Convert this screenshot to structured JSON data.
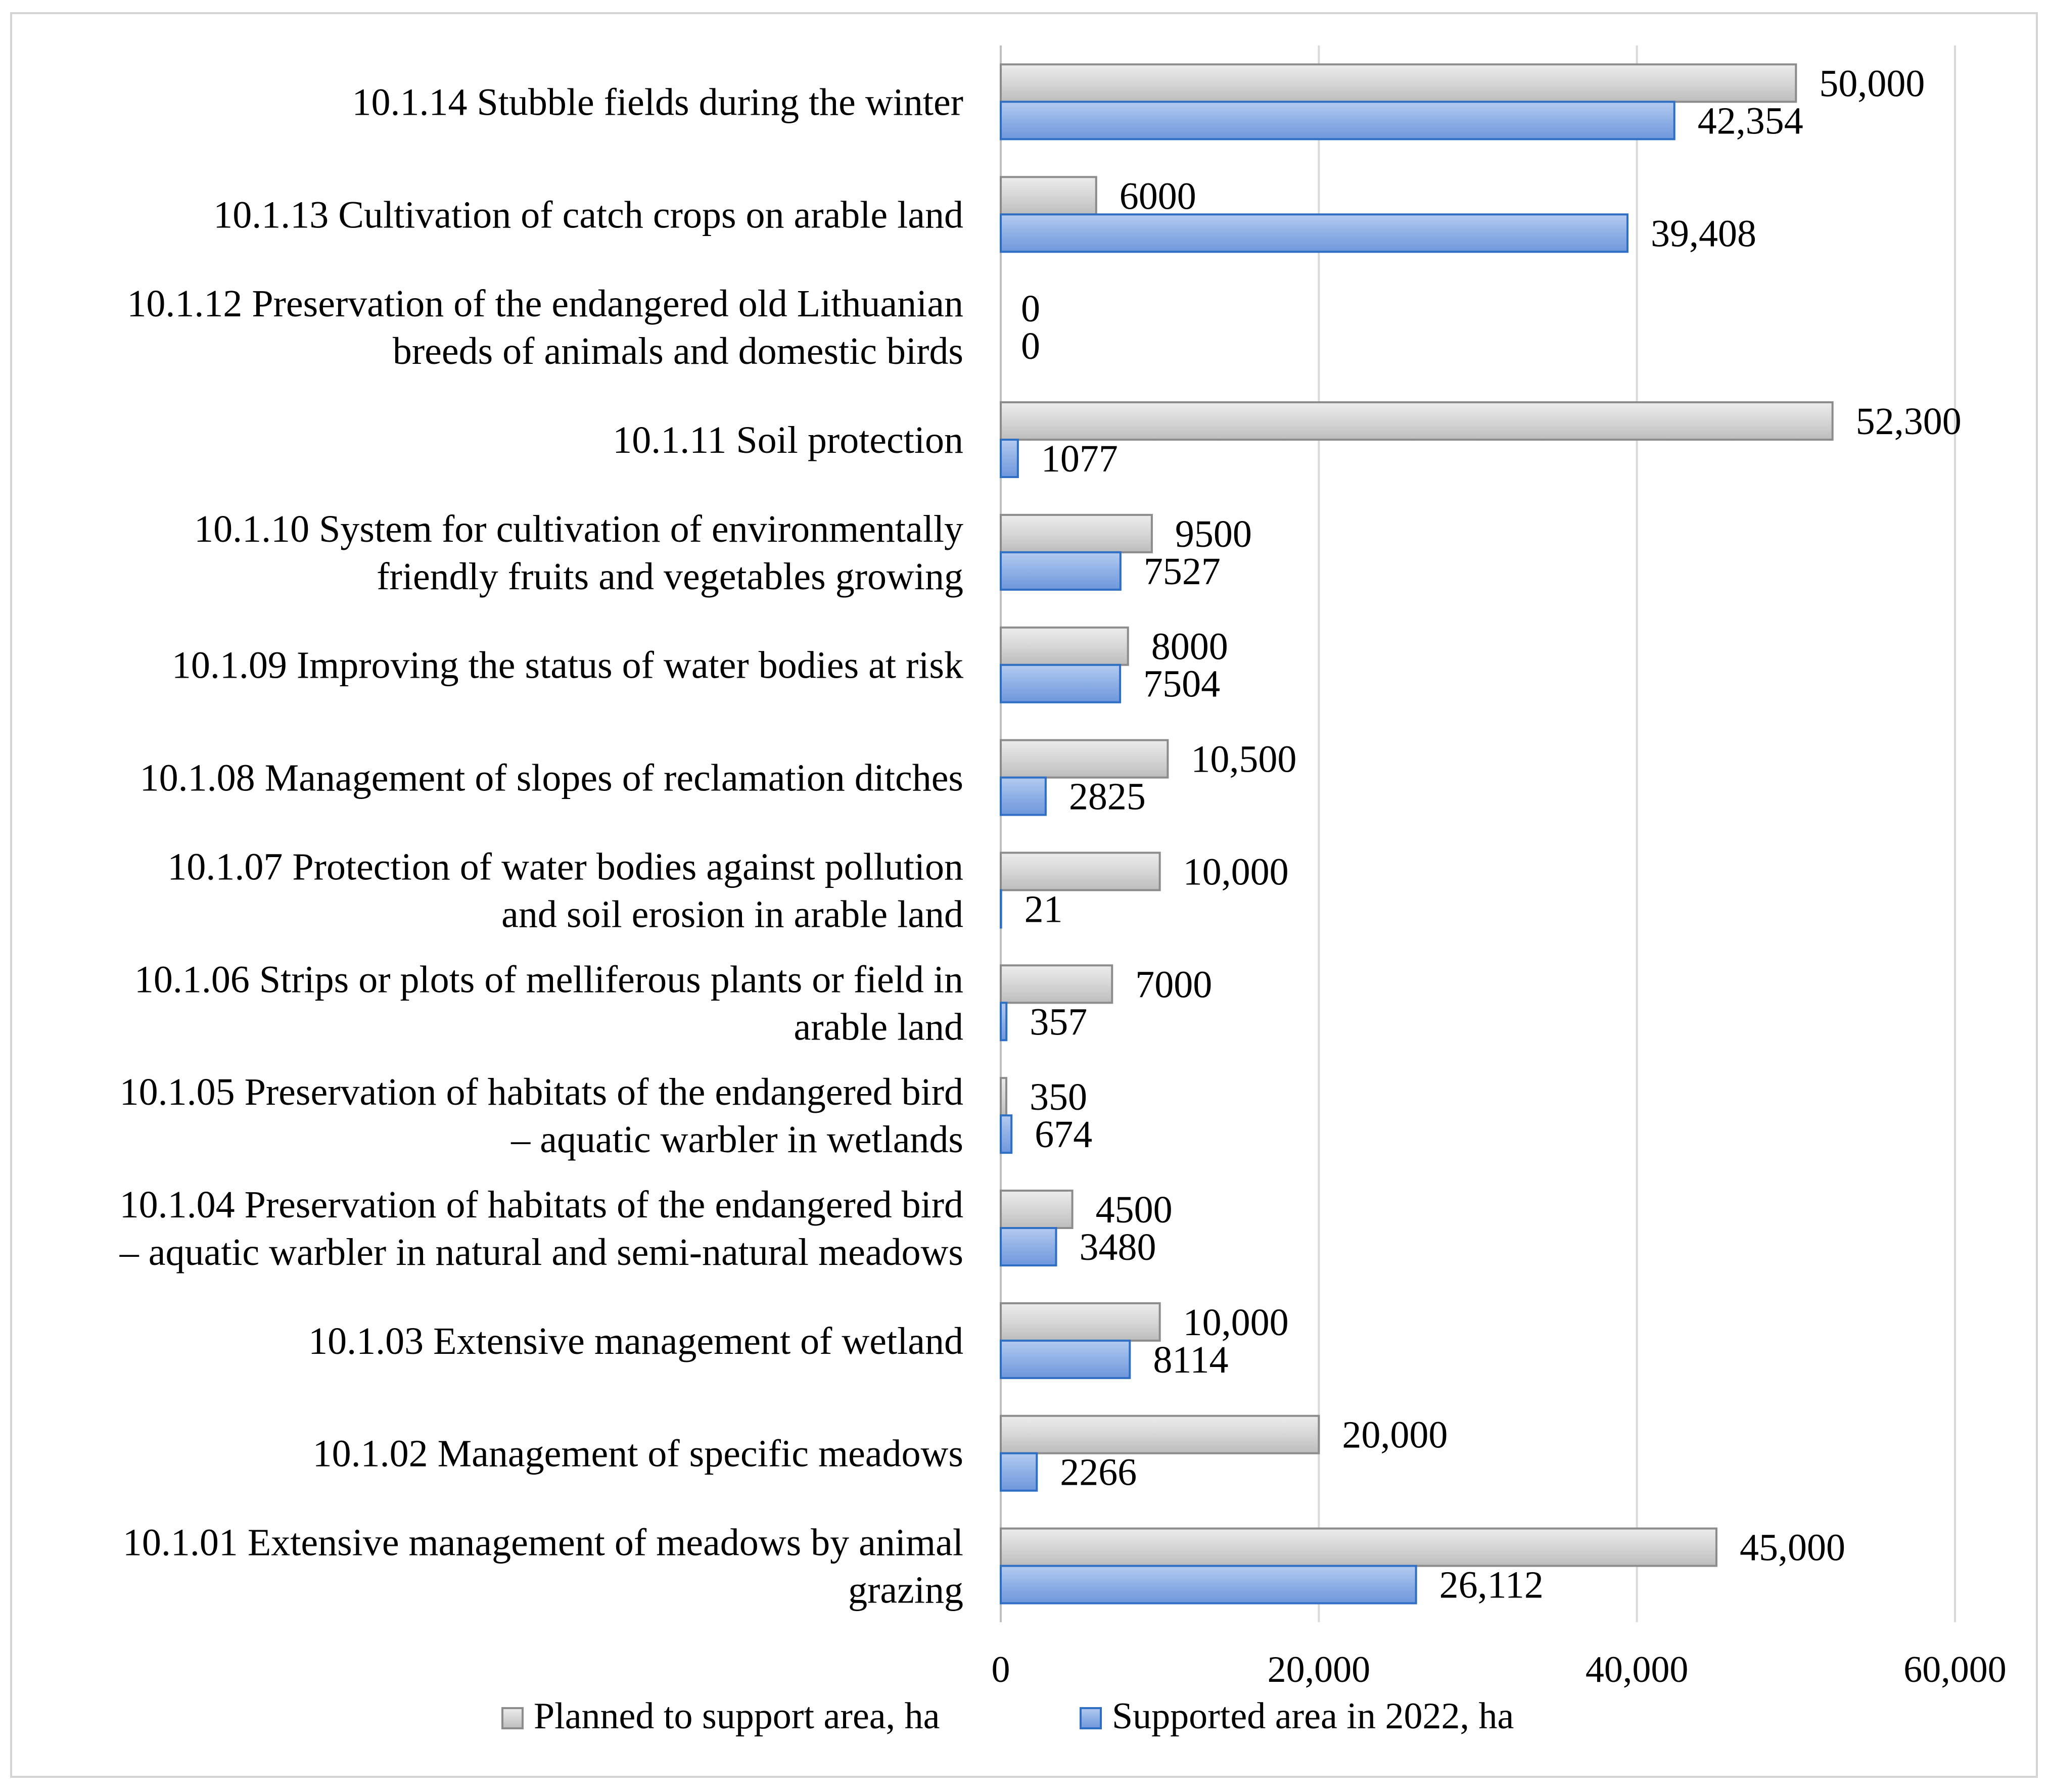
{
  "chart_data": {
    "type": "bar",
    "orientation": "horizontal",
    "categories": [
      "10.1.14 Stubble fields during the winter",
      "10.1.13 Cultivation of catch crops on arable land",
      "10.1.12 Preservation of the endangered old Lithuanian breeds of animals and domestic birds",
      "10.1.11 Soil protection",
      "10.1.10 System for cultivation of environmentally friendly fruits and vegetables growing",
      "10.1.09 Improving the status of water bodies at risk",
      "10.1.08 Management of slopes of reclamation ditches",
      "10.1.07 Protection of water bodies against pollution and soil erosion in arable land",
      "10.1.06 Strips or plots of melliferous plants or field in arable land",
      "10.1.05 Preservation of habitats of the endangered bird – aquatic warbler in wetlands",
      "10.1.04 Preservation of habitats of the endangered bird – aquatic warbler in natural and semi-natural meadows",
      "10.1.03 Extensive management of wetland",
      "10.1.02 Management of specific meadows",
      "10.1.01 Extensive management of meadows by animal grazing"
    ],
    "category_lines": [
      [
        "10.1.14 Stubble fields during the winter"
      ],
      [
        "10.1.13 Cultivation of catch crops on arable land"
      ],
      [
        "10.1.12 Preservation of the endangered old Lithuanian",
        "breeds of animals and domestic birds"
      ],
      [
        "10.1.11 Soil protection"
      ],
      [
        "10.1.10 System for cultivation of environmentally",
        "friendly fruits and vegetables growing"
      ],
      [
        "10.1.09 Improving the status of water bodies at risk"
      ],
      [
        "10.1.08 Management of slopes of reclamation ditches"
      ],
      [
        "10.1.07 Protection of water bodies against pollution",
        "and soil erosion in arable land"
      ],
      [
        "10.1.06 Strips or plots of melliferous plants or field in",
        "arable land"
      ],
      [
        "10.1.05 Preservation of habitats of the endangered bird",
        "– aquatic warbler in wetlands"
      ],
      [
        "10.1.04 Preservation of habitats of the endangered bird",
        "– aquatic warbler in natural and semi-natural meadows"
      ],
      [
        "10.1.03 Extensive management of wetland"
      ],
      [
        "10.1.02 Management of specific meadows"
      ],
      [
        "10.1.01 Extensive management of meadows by animal",
        "grazing"
      ]
    ],
    "series": [
      {
        "name": "Planned to support area, ha",
        "color": "#d0d0d0",
        "stroke": "#8c8c8c",
        "values": [
          50000,
          6000,
          0,
          52300,
          9500,
          8000,
          10500,
          10000,
          7000,
          350,
          4500,
          10000,
          20000,
          45000
        ],
        "labels": [
          "50,000",
          "6000",
          "0",
          "52,300",
          "9500",
          "8000",
          "10,500",
          "10,000",
          "7000",
          "350",
          "4500",
          "10,000",
          "20,000",
          "45,000"
        ]
      },
      {
        "name": "Supported area in 2022, ha",
        "color": "#8fb0e6",
        "stroke": "#2e6fc4",
        "values": [
          42354,
          39408,
          0,
          1077,
          7527,
          7504,
          2825,
          21,
          357,
          674,
          3480,
          8114,
          2266,
          26112
        ],
        "labels": [
          "42,354",
          "39,408",
          "0",
          "1077",
          "7527",
          "7504",
          "2825",
          "21",
          "357",
          "674",
          "3480",
          "8114",
          "2266",
          "26,112"
        ]
      }
    ],
    "xlim": [
      0,
      60000
    ],
    "x_ticks": [
      0,
      20000,
      40000,
      60000
    ],
    "x_tick_labels": [
      "0",
      "20,000",
      "40,000",
      "60,000"
    ],
    "grid": "vertical",
    "legend": "bottom",
    "title": "",
    "xlabel": "",
    "ylabel": ""
  }
}
